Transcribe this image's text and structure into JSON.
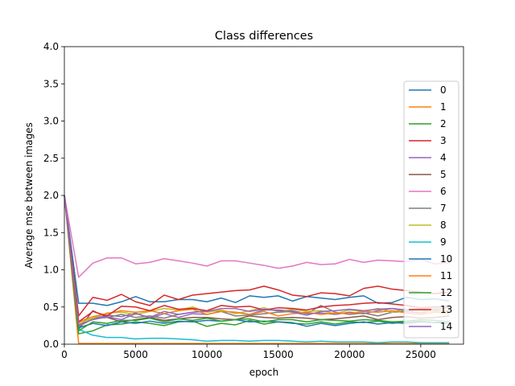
{
  "chart_data": {
    "type": "line",
    "title": "Class differences",
    "xlabel": "epoch",
    "ylabel": "Average mse between images",
    "xlim": [
      0,
      28000
    ],
    "ylim": [
      0,
      4.0
    ],
    "xticks": [
      0,
      5000,
      10000,
      15000,
      20000,
      25000
    ],
    "yticks": [
      0.0,
      0.5,
      1.0,
      1.5,
      2.0,
      2.5,
      3.0,
      3.5,
      4.0
    ],
    "xtick_labels": [
      "0",
      "5000",
      "10000",
      "15000",
      "20000",
      "25000"
    ],
    "ytick_labels": [
      "0.0",
      "0.5",
      "1.0",
      "1.5",
      "2.0",
      "2.5",
      "3.0",
      "3.5",
      "4.0"
    ],
    "grid": false,
    "legend_position": "right",
    "x": [
      0,
      1000,
      2000,
      3000,
      4000,
      5000,
      6000,
      7000,
      8000,
      9000,
      10000,
      11000,
      12000,
      13000,
      14000,
      15000,
      16000,
      17000,
      18000,
      19000,
      20000,
      21000,
      22000,
      23000,
      24000,
      25000,
      26000,
      27000
    ],
    "series": [
      {
        "name": "0",
        "color": "#1f77b4",
        "values": [
          2.0,
          0.55,
          0.55,
          0.52,
          0.57,
          0.64,
          0.57,
          0.57,
          0.6,
          0.6,
          0.57,
          0.62,
          0.56,
          0.65,
          0.63,
          0.65,
          0.58,
          0.64,
          0.62,
          0.6,
          0.63,
          0.65,
          0.55,
          0.56,
          0.63,
          0.6,
          0.61,
          0.58
        ]
      },
      {
        "name": "1",
        "color": "#ff7f0e",
        "values": [
          2.0,
          0.01,
          0.01,
          0.01,
          0.01,
          0.01,
          0.01,
          0.01,
          0.01,
          0.01,
          0.01,
          0.01,
          0.01,
          0.01,
          0.01,
          0.01,
          0.01,
          0.01,
          0.01,
          0.01,
          0.01,
          0.01,
          0.01,
          0.01,
          0.01,
          0.01,
          0.01,
          0.01
        ]
      },
      {
        "name": "2",
        "color": "#2ca02c",
        "values": [
          2.0,
          0.14,
          0.18,
          0.26,
          0.27,
          0.3,
          0.28,
          0.25,
          0.3,
          0.31,
          0.24,
          0.28,
          0.26,
          0.32,
          0.27,
          0.3,
          0.28,
          0.27,
          0.3,
          0.27,
          0.3,
          0.29,
          0.31,
          0.28,
          0.3,
          0.31,
          0.29,
          0.31
        ]
      },
      {
        "name": "3",
        "color": "#d62728",
        "values": [
          2.0,
          0.38,
          0.63,
          0.59,
          0.67,
          0.57,
          0.52,
          0.66,
          0.6,
          0.66,
          0.68,
          0.7,
          0.72,
          0.73,
          0.78,
          0.73,
          0.66,
          0.64,
          0.69,
          0.68,
          0.65,
          0.75,
          0.78,
          0.74,
          0.72,
          0.7,
          0.68,
          0.7
        ]
      },
      {
        "name": "4",
        "color": "#9467bd",
        "values": [
          2.0,
          0.24,
          0.34,
          0.39,
          0.37,
          0.42,
          0.35,
          0.41,
          0.36,
          0.41,
          0.4,
          0.44,
          0.43,
          0.4,
          0.46,
          0.46,
          0.45,
          0.41,
          0.42,
          0.4,
          0.43,
          0.41,
          0.45,
          0.48,
          0.44,
          0.46,
          0.44,
          0.45
        ]
      },
      {
        "name": "5",
        "color": "#8c564b",
        "values": [
          2.0,
          0.2,
          0.45,
          0.36,
          0.3,
          0.33,
          0.36,
          0.32,
          0.34,
          0.36,
          0.36,
          0.34,
          0.33,
          0.38,
          0.36,
          0.35,
          0.36,
          0.35,
          0.33,
          0.34,
          0.36,
          0.38,
          0.33,
          0.36,
          0.37,
          0.35,
          0.36,
          0.38
        ]
      },
      {
        "name": "6",
        "color": "#e377c2",
        "values": [
          2.0,
          0.9,
          1.09,
          1.16,
          1.16,
          1.08,
          1.1,
          1.15,
          1.12,
          1.09,
          1.05,
          1.12,
          1.12,
          1.09,
          1.06,
          1.02,
          1.05,
          1.1,
          1.07,
          1.08,
          1.14,
          1.1,
          1.13,
          1.12,
          1.11,
          1.14,
          1.08,
          1.09
        ]
      },
      {
        "name": "7",
        "color": "#7f7f7f",
        "values": [
          2.0,
          0.24,
          0.34,
          0.36,
          0.4,
          0.36,
          0.38,
          0.35,
          0.4,
          0.43,
          0.45,
          0.44,
          0.38,
          0.39,
          0.41,
          0.43,
          0.44,
          0.41,
          0.52,
          0.43,
          0.4,
          0.42,
          0.38,
          0.43,
          0.44,
          0.42,
          0.46,
          0.44
        ]
      },
      {
        "name": "8",
        "color": "#bcbd22",
        "values": [
          2.0,
          0.28,
          0.35,
          0.42,
          0.43,
          0.4,
          0.44,
          0.48,
          0.46,
          0.5,
          0.43,
          0.46,
          0.41,
          0.45,
          0.49,
          0.44,
          0.47,
          0.44,
          0.45,
          0.41,
          0.46,
          0.44,
          0.48,
          0.43,
          0.47,
          0.45,
          0.44,
          0.46
        ]
      },
      {
        "name": "9",
        "color": "#17becf",
        "values": [
          2.0,
          0.2,
          0.12,
          0.09,
          0.09,
          0.07,
          0.08,
          0.08,
          0.07,
          0.06,
          0.04,
          0.05,
          0.05,
          0.04,
          0.05,
          0.05,
          0.04,
          0.03,
          0.04,
          0.03,
          0.03,
          0.03,
          0.02,
          0.03,
          0.03,
          0.02,
          0.02,
          0.02
        ]
      },
      {
        "name": "10",
        "color": "#1f77b4",
        "values": [
          2.0,
          0.22,
          0.28,
          0.25,
          0.3,
          0.28,
          0.31,
          0.28,
          0.31,
          0.3,
          0.32,
          0.31,
          0.33,
          0.3,
          0.31,
          0.3,
          0.29,
          0.24,
          0.28,
          0.25,
          0.28,
          0.3,
          0.27,
          0.29,
          0.28,
          0.3,
          0.29,
          0.28
        ]
      },
      {
        "name": "11",
        "color": "#ff7f0e",
        "values": [
          2.0,
          0.3,
          0.37,
          0.41,
          0.45,
          0.43,
          0.45,
          0.41,
          0.45,
          0.47,
          0.4,
          0.44,
          0.43,
          0.4,
          0.44,
          0.38,
          0.41,
          0.43,
          0.4,
          0.42,
          0.41,
          0.44,
          0.43,
          0.45,
          0.42,
          0.4,
          0.43,
          0.41
        ]
      },
      {
        "name": "12",
        "color": "#2ca02c",
        "values": [
          2.0,
          0.18,
          0.3,
          0.28,
          0.32,
          0.32,
          0.35,
          0.3,
          0.34,
          0.32,
          0.35,
          0.31,
          0.33,
          0.34,
          0.3,
          0.33,
          0.33,
          0.3,
          0.33,
          0.32,
          0.31,
          0.33,
          0.32,
          0.3,
          0.31,
          0.33,
          0.32,
          0.3
        ]
      },
      {
        "name": "13",
        "color": "#d62728",
        "values": [
          2.0,
          0.3,
          0.44,
          0.38,
          0.51,
          0.5,
          0.45,
          0.52,
          0.47,
          0.48,
          0.45,
          0.52,
          0.5,
          0.51,
          0.46,
          0.49,
          0.48,
          0.46,
          0.5,
          0.52,
          0.53,
          0.55,
          0.56,
          0.54,
          0.52,
          0.49,
          0.5,
          0.51
        ]
      },
      {
        "name": "14",
        "color": "#9467bd",
        "values": [
          2.0,
          0.26,
          0.33,
          0.37,
          0.33,
          0.41,
          0.36,
          0.44,
          0.4,
          0.43,
          0.44,
          0.48,
          0.48,
          0.44,
          0.47,
          0.45,
          0.43,
          0.39,
          0.44,
          0.45,
          0.47,
          0.45,
          0.47,
          0.48,
          0.46,
          0.48,
          0.47,
          0.49
        ]
      }
    ]
  }
}
